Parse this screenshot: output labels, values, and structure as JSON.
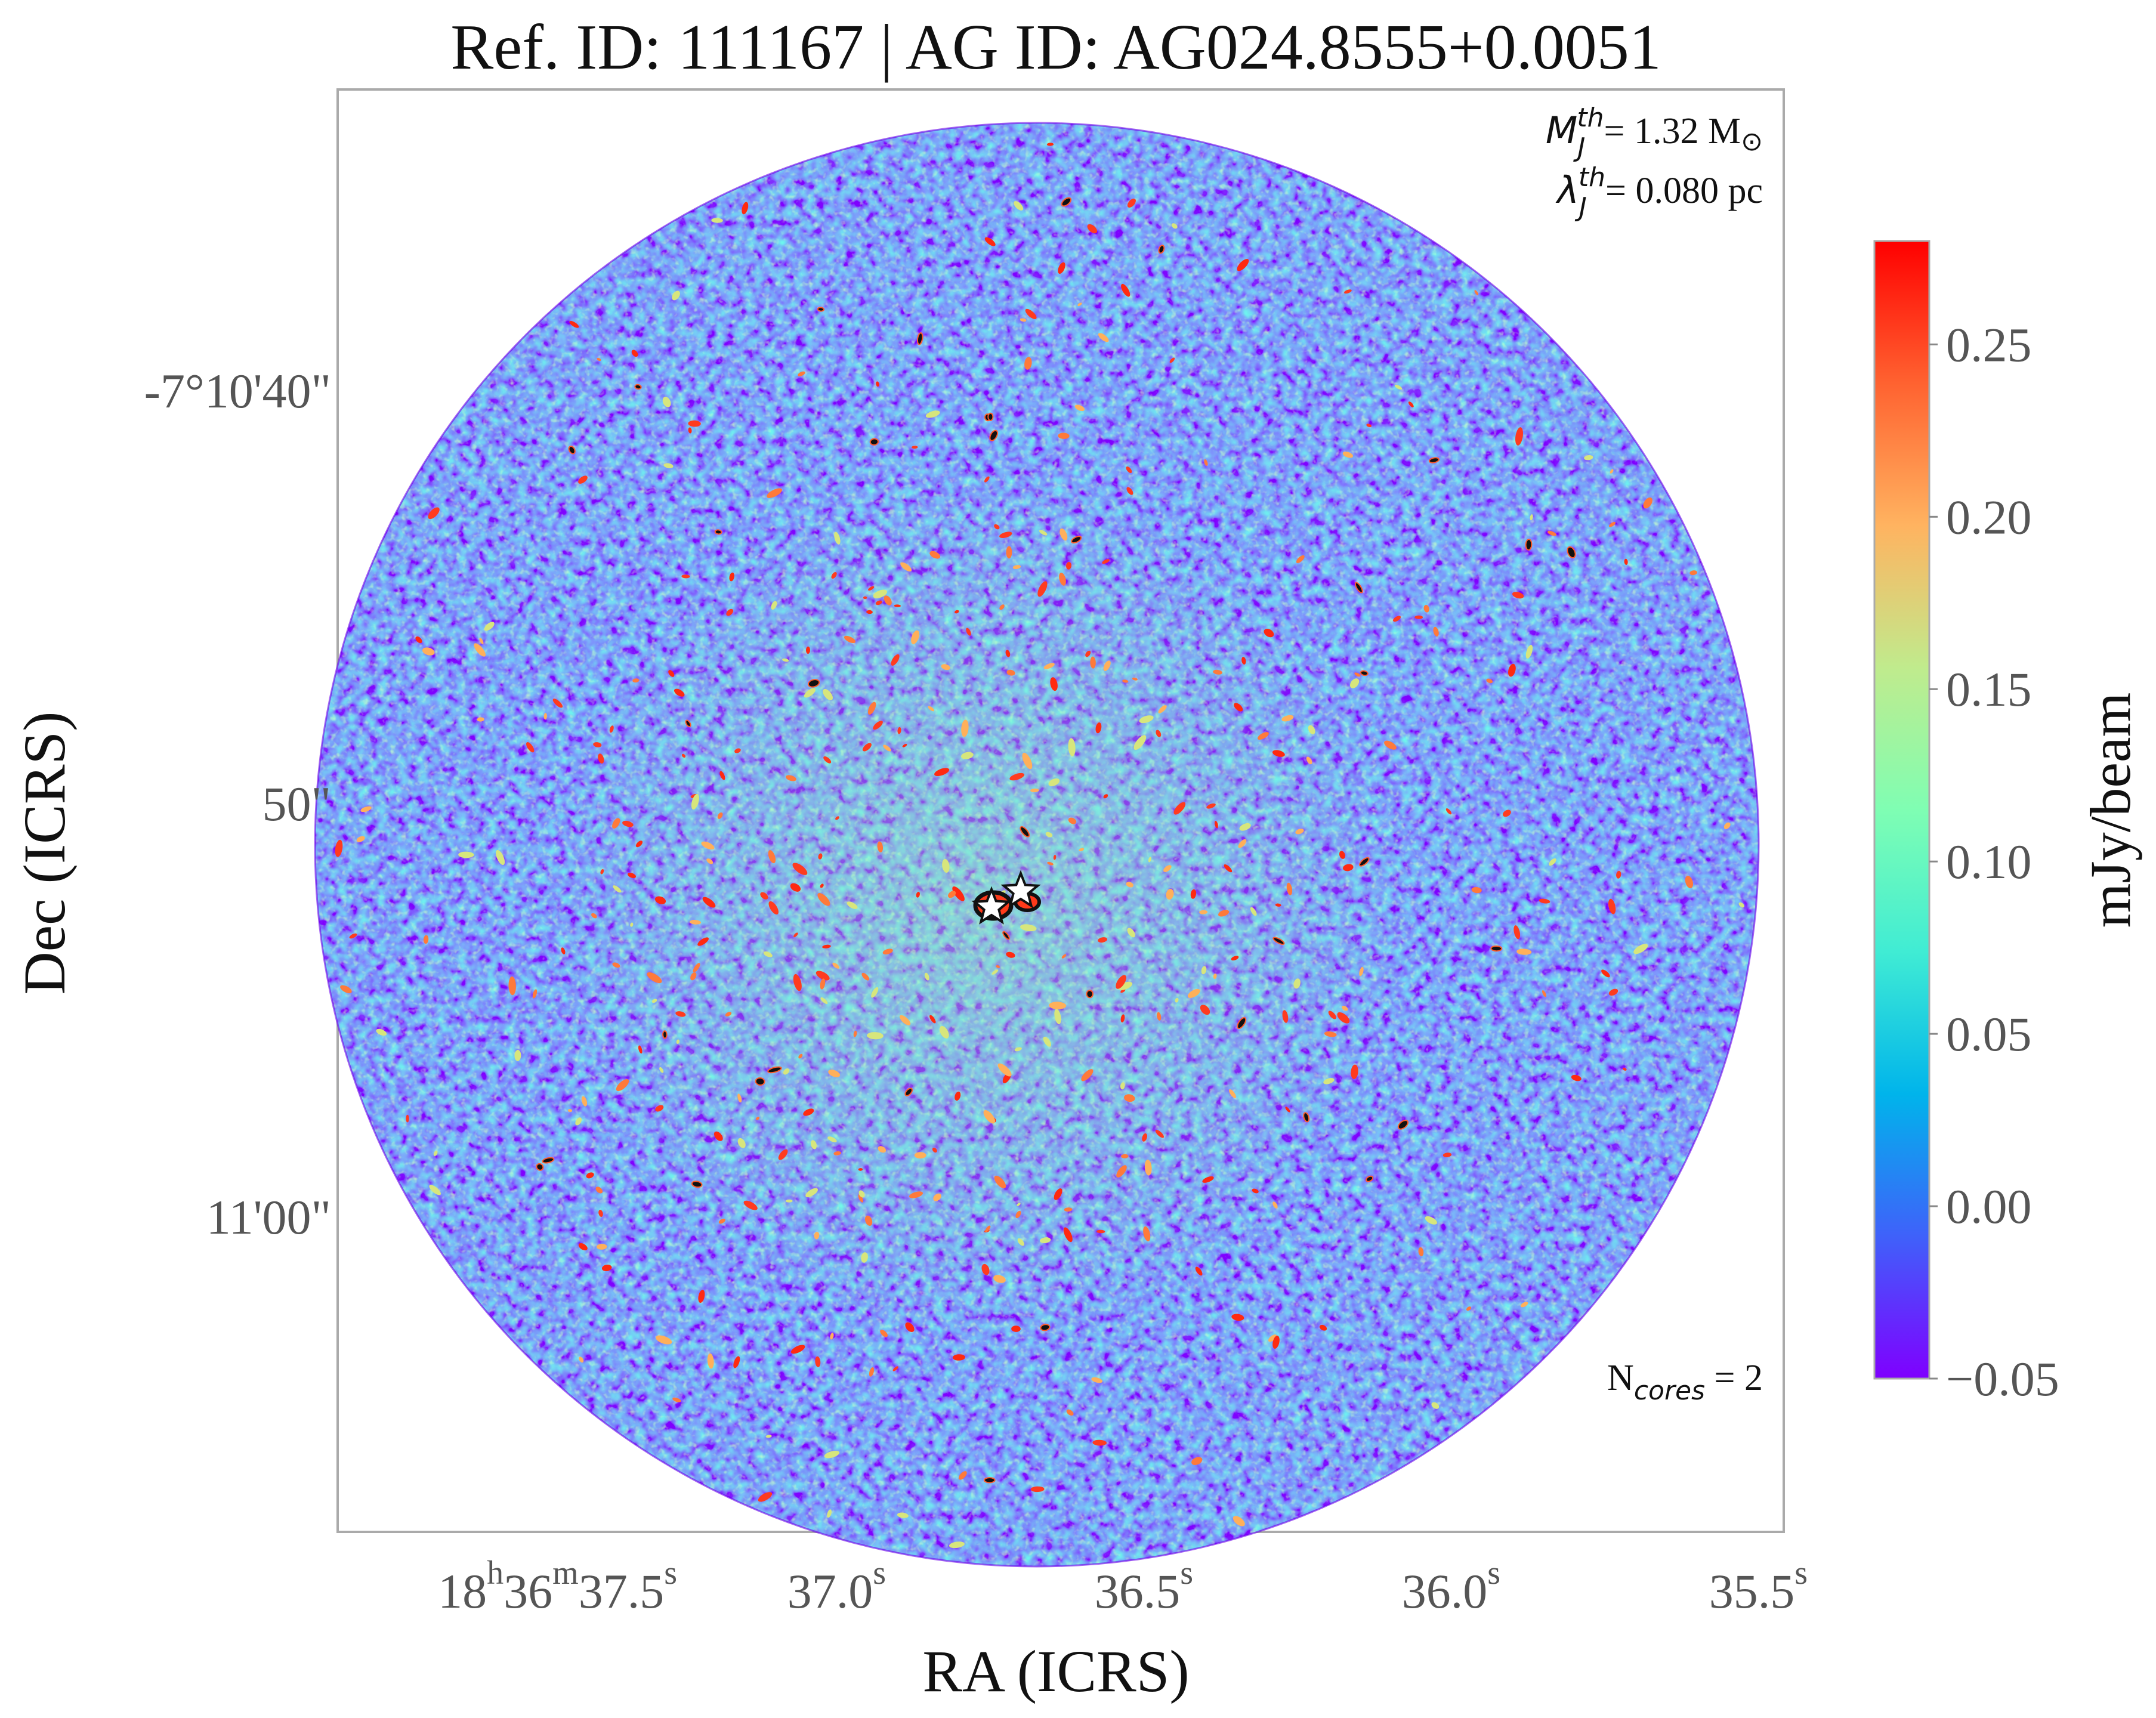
{
  "chart_data": {
    "type": "heatmap",
    "title": "Ref. ID: 111167 | AG ID: AG024.8555+0.0051",
    "xlabel": "RA (ICRS)",
    "ylabel": "Dec (ICRS)",
    "x_ticks": [
      {
        "pre": "18",
        "sup1": "h",
        "mid": "36",
        "sup2": "m",
        "num": "37.5",
        "sup3": "s"
      },
      {
        "num": "37.0",
        "sup": "s"
      },
      {
        "num": "36.5",
        "sup": "s"
      },
      {
        "num": "36.0",
        "sup": "s"
      },
      {
        "num": "35.5",
        "sup": "s"
      }
    ],
    "y_ticks": [
      "-7°10'40\"",
      "50\"",
      "11'00\""
    ],
    "colorbar": {
      "label": "mJy/beam",
      "ticks": [
        "0.25",
        "0.20",
        "0.15",
        "0.10",
        "0.05",
        "0.00",
        "−0.05"
      ],
      "range": [
        -0.05,
        0.28
      ],
      "colormap": "rainbow",
      "colors": [
        "#7f00ff",
        "#3f61fa",
        "#00b4eb",
        "#40ecd4",
        "#7ffeb3",
        "#c0eb8d",
        "#ffb360",
        "#ff6230",
        "#ff0000"
      ]
    },
    "annotations": {
      "mass_symbol": "M",
      "mass_sub": "J",
      "mass_sup": "th",
      "mass_value": "= 1.32 M",
      "mass_unit_symbol": "⊙",
      "length_symbol": "λ",
      "length_sub": "J",
      "length_sup": "th",
      "length_value": "= 0.080 pc",
      "ncores_base": "N",
      "ncores_sub": "cores",
      "ncores_value": " = 2"
    },
    "cores": 2,
    "grid": false,
    "axis_color": "#aaaaaa",
    "tick_text_color": "#555555"
  }
}
